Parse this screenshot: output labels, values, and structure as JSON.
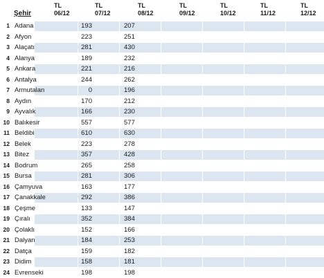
{
  "header": {
    "city_label": "Şehir",
    "columns": [
      {
        "unit": "TL",
        "date": "06/12"
      },
      {
        "unit": "TL",
        "date": "07/12"
      },
      {
        "unit": "TL",
        "date": "08/12"
      },
      {
        "unit": "TL",
        "date": "09/12"
      },
      {
        "unit": "TL",
        "date": "10/12"
      },
      {
        "unit": "TL",
        "date": "11/12"
      },
      {
        "unit": "TL",
        "date": "12/12"
      }
    ]
  },
  "rows": [
    {
      "no": "1",
      "city": "Adana",
      "v0612": "193",
      "v0712": "207"
    },
    {
      "no": "2",
      "city": "Afyon",
      "v0612": "223",
      "v0712": "251"
    },
    {
      "no": "3",
      "city": "Alaçatı",
      "v0612": "281",
      "v0712": "430"
    },
    {
      "no": "4",
      "city": "Alanya",
      "v0612": "189",
      "v0712": "232"
    },
    {
      "no": "5",
      "city": "Ankara",
      "v0612": "221",
      "v0712": "216"
    },
    {
      "no": "6",
      "city": "Antalya",
      "v0612": "244",
      "v0712": "262"
    },
    {
      "no": "7",
      "city": "Armutalan",
      "v0612": "0",
      "v0712": "196"
    },
    {
      "no": "8",
      "city": "Aydın",
      "v0612": "170",
      "v0712": "212"
    },
    {
      "no": "9",
      "city": "Ayvalık",
      "v0612": "166",
      "v0712": "230"
    },
    {
      "no": "10",
      "city": "Balıkesir",
      "v0612": "557",
      "v0712": "577"
    },
    {
      "no": "11",
      "city": "Beldibi",
      "v0612": "610",
      "v0712": "630"
    },
    {
      "no": "12",
      "city": "Belek",
      "v0612": "223",
      "v0712": "278"
    },
    {
      "no": "13",
      "city": "Bitez",
      "v0612": "357",
      "v0712": "428"
    },
    {
      "no": "14",
      "city": "Bodrum",
      "v0612": "265",
      "v0712": "258"
    },
    {
      "no": "15",
      "city": "Bursa",
      "v0612": "281",
      "v0712": "306"
    },
    {
      "no": "16",
      "city": "Çamyuva",
      "v0612": "163",
      "v0712": "177"
    },
    {
      "no": "17",
      "city": "Çanakkale",
      "v0612": "292",
      "v0712": "386"
    },
    {
      "no": "18",
      "city": "Çeşme",
      "v0612": "133",
      "v0712": "147"
    },
    {
      "no": "19",
      "city": "Çıralı",
      "v0612": "352",
      "v0712": "384"
    },
    {
      "no": "20",
      "city": "Çolaklı",
      "v0612": "152",
      "v0712": "166"
    },
    {
      "no": "21",
      "city": "Dalyan",
      "v0612": "184",
      "v0712": "253"
    },
    {
      "no": "22",
      "city": "Datça",
      "v0612": "159",
      "v0712": "182"
    },
    {
      "no": "23",
      "city": "Didim",
      "v0612": "158",
      "v0712": "181"
    },
    {
      "no": "24",
      "city": "Evrenseki",
      "v0612": "198",
      "v0712": "198"
    }
  ],
  "colors": {
    "row_shade": "#dce6f1",
    "text": "#1a1a1a"
  }
}
